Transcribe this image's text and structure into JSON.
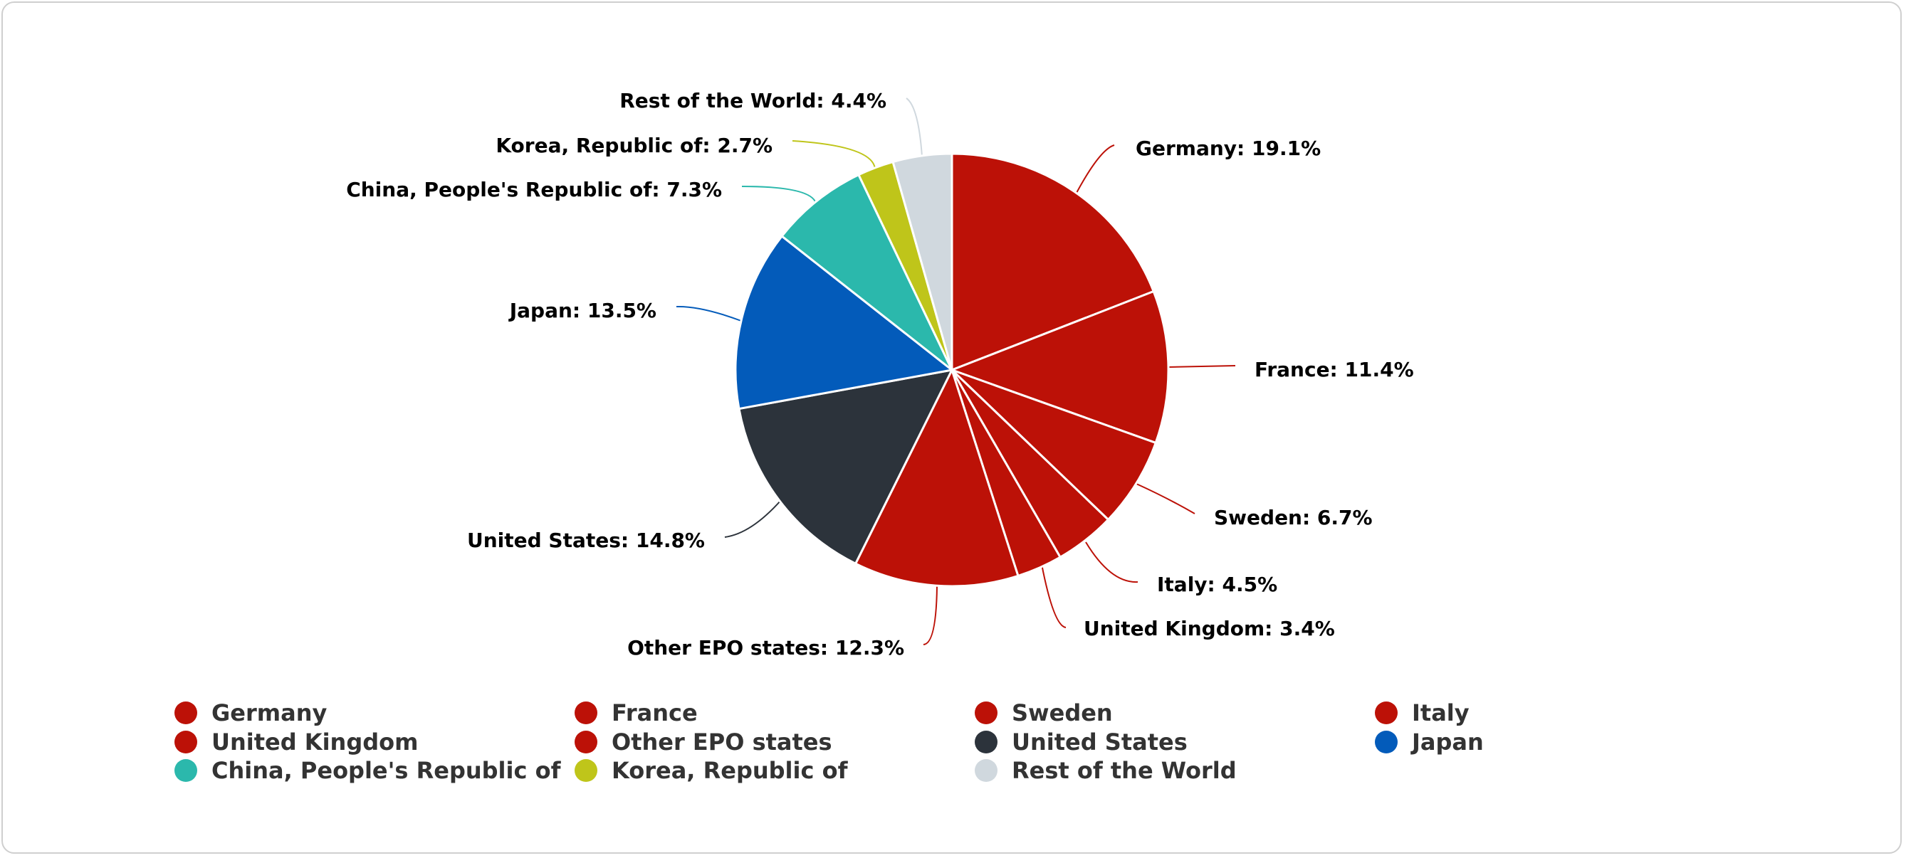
{
  "chart_data": {
    "type": "pie",
    "title": "",
    "legend_position": "bottom",
    "slices": [
      {
        "name": "Germany",
        "value": 19.1,
        "label": "Germany: 19.1%",
        "color": "#bc1107"
      },
      {
        "name": "France",
        "value": 11.4,
        "label": "France: 11.4%",
        "color": "#bc1107"
      },
      {
        "name": "Sweden",
        "value": 6.7,
        "label": "Sweden: 6.7%",
        "color": "#bc1107"
      },
      {
        "name": "Italy",
        "value": 4.5,
        "label": "Italy: 4.5%",
        "color": "#bc1107"
      },
      {
        "name": "United Kingdom",
        "value": 3.4,
        "label": "United Kingdom: 3.4%",
        "color": "#bc1107"
      },
      {
        "name": "Other EPO states",
        "value": 12.3,
        "label": "Other EPO states: 12.3%",
        "color": "#bc1107"
      },
      {
        "name": "United States",
        "value": 14.8,
        "label": "United States: 14.8%",
        "color": "#2c333b"
      },
      {
        "name": "Japan",
        "value": 13.5,
        "label": "Japan: 13.5%",
        "color": "#035bba"
      },
      {
        "name": "China, People's Republic of",
        "value": 7.3,
        "label": "China, People's Republic of: 7.3%",
        "color": "#2bb8ac"
      },
      {
        "name": "Korea, Republic of",
        "value": 2.7,
        "label": "Korea, Republic of: 2.7%",
        "color": "#bfc51a"
      },
      {
        "name": "Rest of the World",
        "value": 4.4,
        "label": "Rest of the World: 4.4%",
        "color": "#d0d8de"
      }
    ]
  }
}
